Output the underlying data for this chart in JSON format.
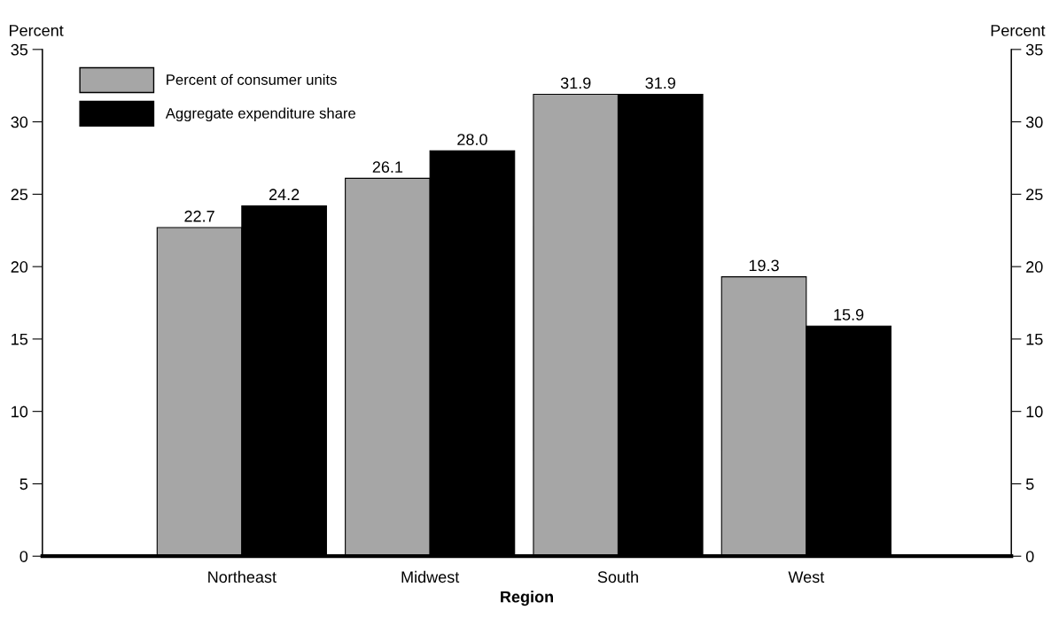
{
  "chart_data": {
    "type": "bar",
    "xlabel": "Region",
    "ylabel": "Percent",
    "y2label": "Percent",
    "categories": [
      "Northeast",
      "Midwest",
      "South",
      "West"
    ],
    "series": [
      {
        "name": "Percent of consumer units",
        "color": "#a6a6a6",
        "values": [
          22.7,
          26.1,
          31.9,
          19.3
        ],
        "value_labels": [
          "22.7",
          "26.1",
          "31.9",
          "19.3"
        ]
      },
      {
        "name": "Aggregate expenditure share",
        "color": "#000000",
        "values": [
          24.2,
          28.0,
          31.9,
          15.9
        ],
        "value_labels": [
          "24.2",
          "28.0",
          "31.9",
          "15.9"
        ]
      }
    ],
    "ylim": [
      0,
      35
    ],
    "yticks": [
      0,
      5,
      10,
      15,
      20,
      25,
      30,
      35
    ],
    "y2lim": [
      0,
      35
    ],
    "y2ticks": [
      0,
      5,
      10,
      15,
      20,
      25,
      30,
      35
    ],
    "grid": false,
    "legend": "top left"
  }
}
